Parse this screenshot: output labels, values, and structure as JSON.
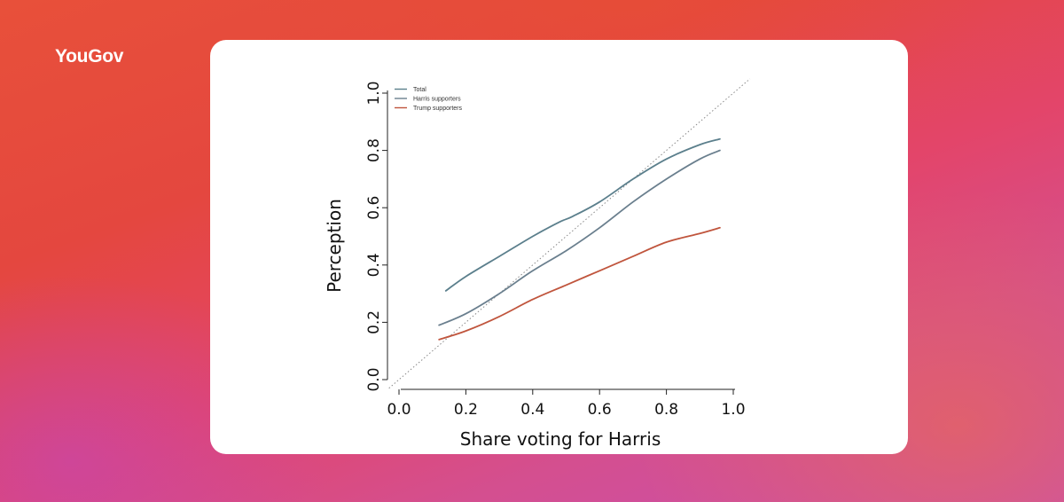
{
  "brand": {
    "logo_text": "YouGov"
  },
  "chart_data": {
    "type": "line",
    "title": "",
    "xlabel": "Share voting for Harris",
    "ylabel": "Perception",
    "xlim": [
      0.0,
      1.0
    ],
    "ylim": [
      0.0,
      1.0
    ],
    "x_ticks": [
      "0.0",
      "0.2",
      "0.4",
      "0.6",
      "0.8",
      "1.0"
    ],
    "y_ticks": [
      "0.0",
      "0.2",
      "0.4",
      "0.6",
      "0.8",
      "1.0"
    ],
    "grid": false,
    "legend_position": "top-left",
    "reference_line": {
      "name": "y = x",
      "style": "dotted",
      "color": "#888888"
    },
    "series": [
      {
        "name": "Total",
        "color": "#5b7f8c",
        "x": [
          0.14,
          0.2,
          0.3,
          0.4,
          0.48,
          0.52,
          0.6,
          0.7,
          0.8,
          0.9,
          0.96
        ],
        "y": [
          0.31,
          0.36,
          0.43,
          0.5,
          0.55,
          0.57,
          0.62,
          0.7,
          0.77,
          0.82,
          0.84
        ]
      },
      {
        "name": "Harris supporters",
        "color": "#6a7f8e",
        "x": [
          0.12,
          0.2,
          0.3,
          0.4,
          0.5,
          0.6,
          0.7,
          0.8,
          0.9,
          0.96
        ],
        "y": [
          0.19,
          0.23,
          0.3,
          0.38,
          0.45,
          0.53,
          0.62,
          0.7,
          0.77,
          0.8
        ]
      },
      {
        "name": "Trump supporters",
        "color": "#c0553d",
        "x": [
          0.12,
          0.2,
          0.3,
          0.4,
          0.5,
          0.6,
          0.7,
          0.8,
          0.9,
          0.96
        ],
        "y": [
          0.14,
          0.17,
          0.22,
          0.28,
          0.33,
          0.38,
          0.43,
          0.48,
          0.51,
          0.53
        ]
      }
    ]
  }
}
